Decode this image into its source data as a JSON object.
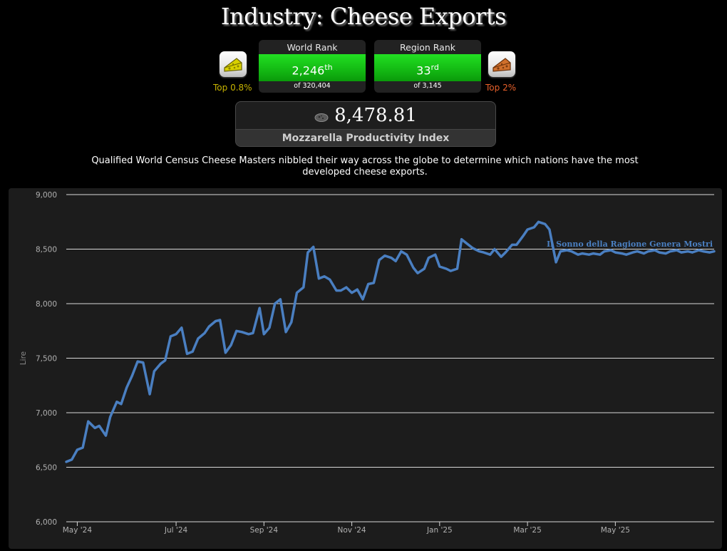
{
  "page": {
    "title": "Industry: Cheese Exports",
    "description": "Qualified World Census Cheese Masters nibbled their way across the globe to determine which nations have the most developed cheese exports."
  },
  "world_rank": {
    "label": "World Rank",
    "value": "2,246",
    "suffix": "th",
    "of_text": "of 320,404",
    "top_text": "Top 0.8%",
    "top_color": "#c8b400",
    "badge_icon": "gold-cheese-icon"
  },
  "region_rank": {
    "label": "Region Rank",
    "value": "33",
    "suffix": "rd",
    "of_text": "of 3,145",
    "top_text": "Top 2%",
    "top_color": "#e8602a",
    "badge_icon": "bronze-cheese-icon"
  },
  "score": {
    "value": "8,478.81",
    "label": "Mozzarella Productivity Index",
    "icon": "cheese-slice-icon"
  },
  "chart_data": {
    "type": "line",
    "title": "",
    "xlabel": "",
    "ylabel": "Lire",
    "ylim": [
      6000,
      9000
    ],
    "yticks": [
      6000,
      6500,
      7000,
      7500,
      8000,
      8500,
      9000
    ],
    "ytick_labels": [
      "6,000",
      "6,500",
      "7,000",
      "7,500",
      "8,000",
      "8,500",
      "9,000"
    ],
    "xlim": [
      0,
      59
    ],
    "xticks": [
      1,
      10,
      18,
      26,
      34,
      42,
      50
    ],
    "xtick_labels": [
      "May '24",
      "Jul '24",
      "Sep '24",
      "Nov '24",
      "Jan '25",
      "Mar '25",
      "May '25"
    ],
    "grid": true,
    "line_color": "#4a7fc1",
    "series": [
      {
        "name": "Il Sonno della Ragione Genera Mostri",
        "x": [
          0,
          0.5,
          1,
          1.5,
          2,
          2.6,
          3,
          3.6,
          4,
          4.6,
          5,
          5.5,
          6,
          6.5,
          7,
          7.6,
          8,
          8.6,
          9,
          9.5,
          10,
          10.5,
          11,
          11.5,
          12,
          12.6,
          13,
          13.6,
          14,
          14.5,
          15,
          15.5,
          16,
          16.6,
          17,
          17.6,
          18,
          18.5,
          19,
          19.5,
          20,
          20.5,
          21,
          21.6,
          22,
          22.5,
          23,
          23.5,
          24,
          24.6,
          25,
          25.5,
          26,
          26.5,
          27,
          27.5,
          28,
          28.5,
          29,
          29.6,
          30,
          30.5,
          31,
          31.6,
          32,
          32.6,
          33,
          33.6,
          34,
          34.6,
          35,
          35.6,
          36,
          36.5,
          37,
          37.6,
          38,
          38.6,
          39,
          39.6,
          40,
          40.6,
          41,
          41.6,
          42,
          42.6,
          43,
          43.6,
          44,
          44.6,
          45,
          45.6,
          46,
          46.6,
          47,
          47.6,
          48,
          48.6,
          49,
          49.6,
          50,
          50.6,
          51,
          51.6,
          52,
          52.6,
          53,
          53.6,
          54,
          54.6,
          55,
          55.6,
          56,
          56.6,
          57,
          57.6,
          58,
          58.6,
          59
        ],
        "values": [
          6550,
          6570,
          6660,
          6680,
          6920,
          6860,
          6880,
          6790,
          6960,
          7100,
          7080,
          7230,
          7340,
          7470,
          7460,
          7170,
          7380,
          7450,
          7480,
          7700,
          7720,
          7780,
          7540,
          7560,
          7680,
          7730,
          7790,
          7840,
          7850,
          7550,
          7620,
          7750,
          7740,
          7720,
          7730,
          7960,
          7720,
          7780,
          8000,
          8040,
          7740,
          7830,
          8100,
          8150,
          8470,
          8520,
          8230,
          8250,
          8220,
          8120,
          8120,
          8150,
          8100,
          8130,
          8040,
          8180,
          8190,
          8400,
          8440,
          8420,
          8390,
          8480,
          8450,
          8330,
          8280,
          8320,
          8420,
          8450,
          8340,
          8320,
          8300,
          8320,
          8590,
          8550,
          8510,
          8480,
          8470,
          8450,
          8500,
          8430,
          8470,
          8540,
          8540,
          8620,
          8680,
          8700,
          8750,
          8730,
          8680,
          8380,
          8480,
          8490,
          8480,
          8450,
          8460,
          8450,
          8460,
          8450,
          8480,
          8490,
          8470,
          8460,
          8450,
          8470,
          8480,
          8460,
          8480,
          8490,
          8470,
          8460,
          8480,
          8490,
          8470,
          8480,
          8470,
          8490,
          8480,
          8470,
          8480
        ],
        "label_position": "top-right"
      }
    ]
  }
}
